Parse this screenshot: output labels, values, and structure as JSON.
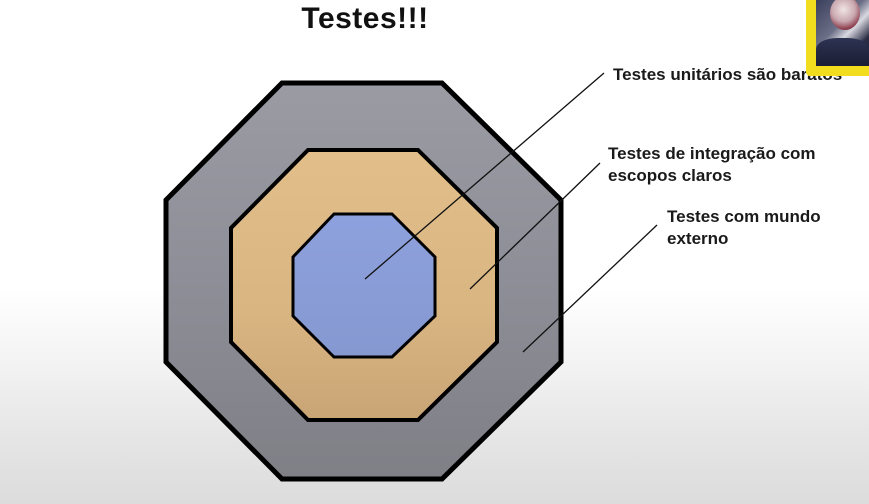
{
  "slide": {
    "title": "Testes!!!"
  },
  "labels": {
    "unit": "Testes unitários são baratos",
    "integration": "Testes de integração com\nescopos claros",
    "external": "Testes com mundo\nexterno"
  },
  "colors": {
    "outer_layer": "#8f9099",
    "middle_layer": "#dfba86",
    "inner_layer": "#8a9edb",
    "outline": "#000000",
    "webcam_frame": "#f2dc1e"
  }
}
